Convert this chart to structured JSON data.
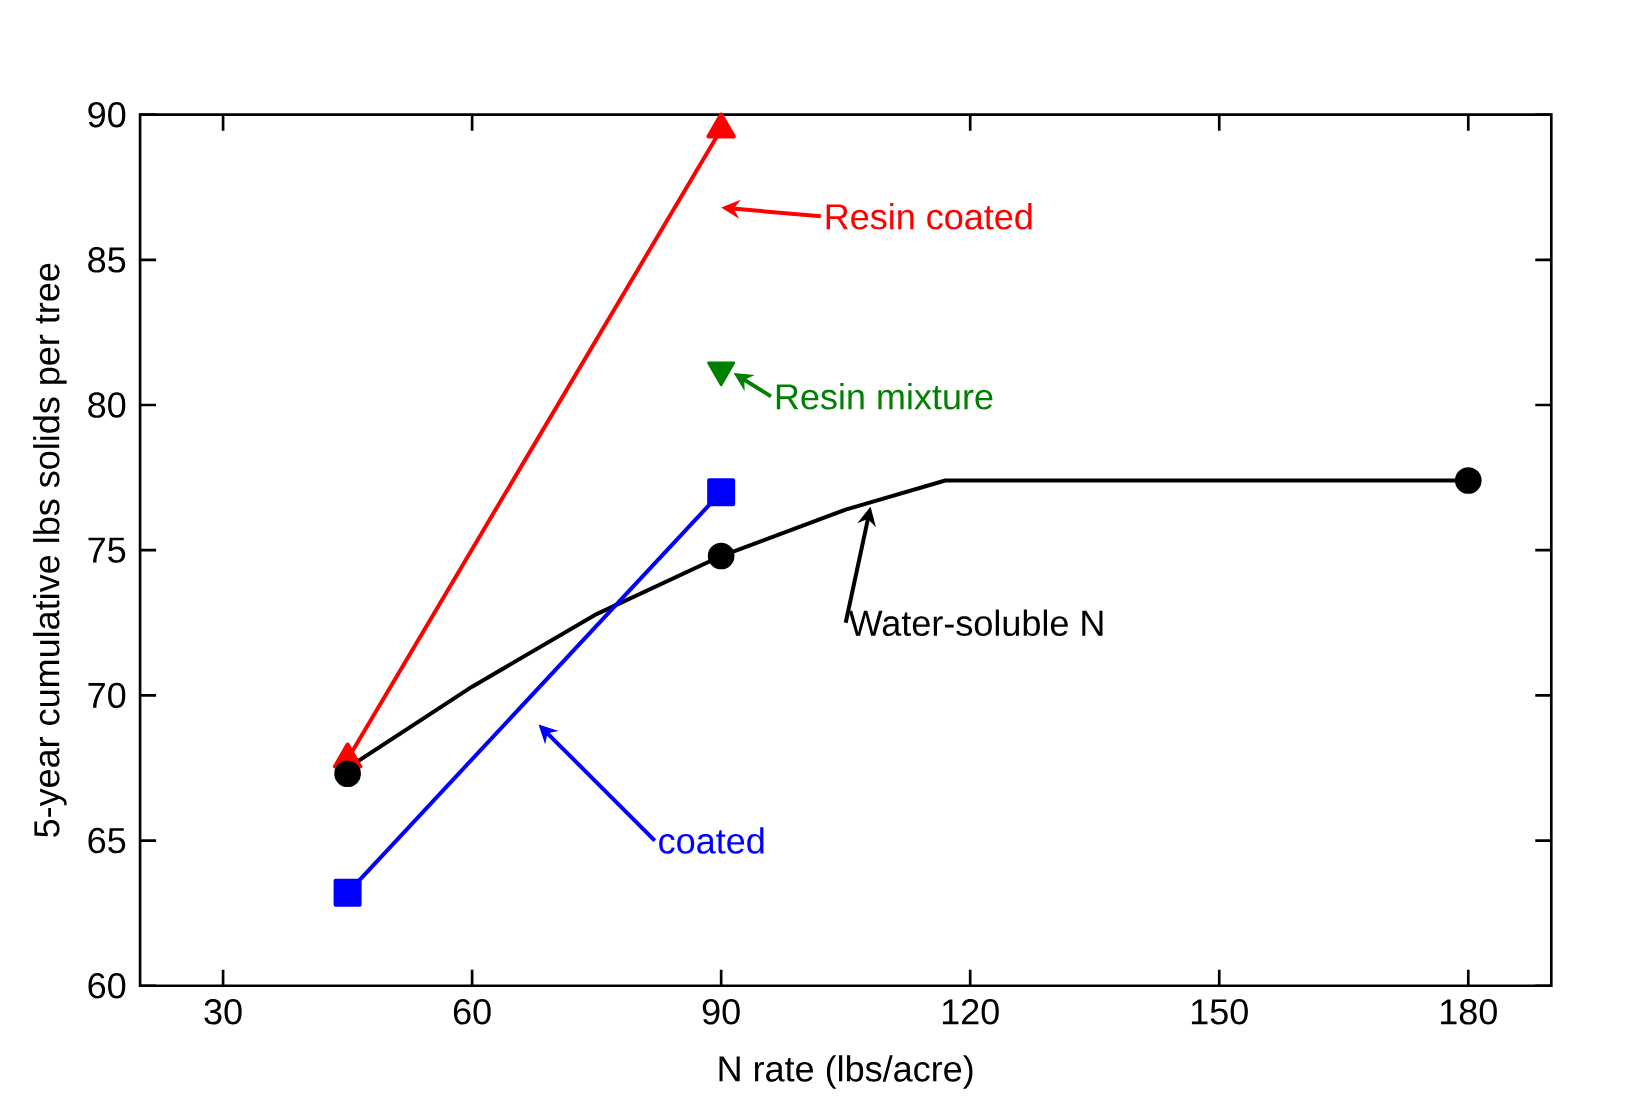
{
  "chart_data": {
    "type": "line",
    "xlabel": "N rate (lbs/acre)",
    "ylabel": "5-year cumulative lbs solids per tree",
    "xlim": [
      20,
      190
    ],
    "ylim": [
      60,
      90
    ],
    "xticks": [
      30,
      60,
      90,
      120,
      150,
      180
    ],
    "yticks": [
      60,
      65,
      70,
      75,
      80,
      85,
      90
    ],
    "grid": false,
    "legend": "right",
    "series": [
      {
        "name": "Resin coated",
        "color": "#ff0000",
        "marker": "triangle",
        "x": [
          45,
          90
        ],
        "values": [
          67.8,
          89.5
        ]
      },
      {
        "name": "Resin mixture",
        "color": "#008000",
        "type": "scatter",
        "marker": "triangle down",
        "x": [
          90
        ],
        "values": [
          81.2
        ]
      },
      {
        "name": "Water-soluble N",
        "color": "#000000",
        "marker": "none",
        "x": [
          45,
          60,
          75,
          90,
          105,
          117,
          180
        ],
        "values": [
          67.5,
          70.3,
          72.8,
          74.8,
          76.4,
          77.4,
          77.4
        ]
      },
      {
        "color": "#000000",
        "type": "scatter",
        "marker": "circle",
        "x": [
          45,
          90,
          180
        ],
        "values": [
          67.3,
          74.8,
          77.4
        ]
      },
      {
        "name": "coated",
        "color": "#0000ff",
        "marker": "square",
        "x": [
          45,
          90
        ],
        "values": [
          63.2,
          77.0
        ]
      }
    ]
  }
}
